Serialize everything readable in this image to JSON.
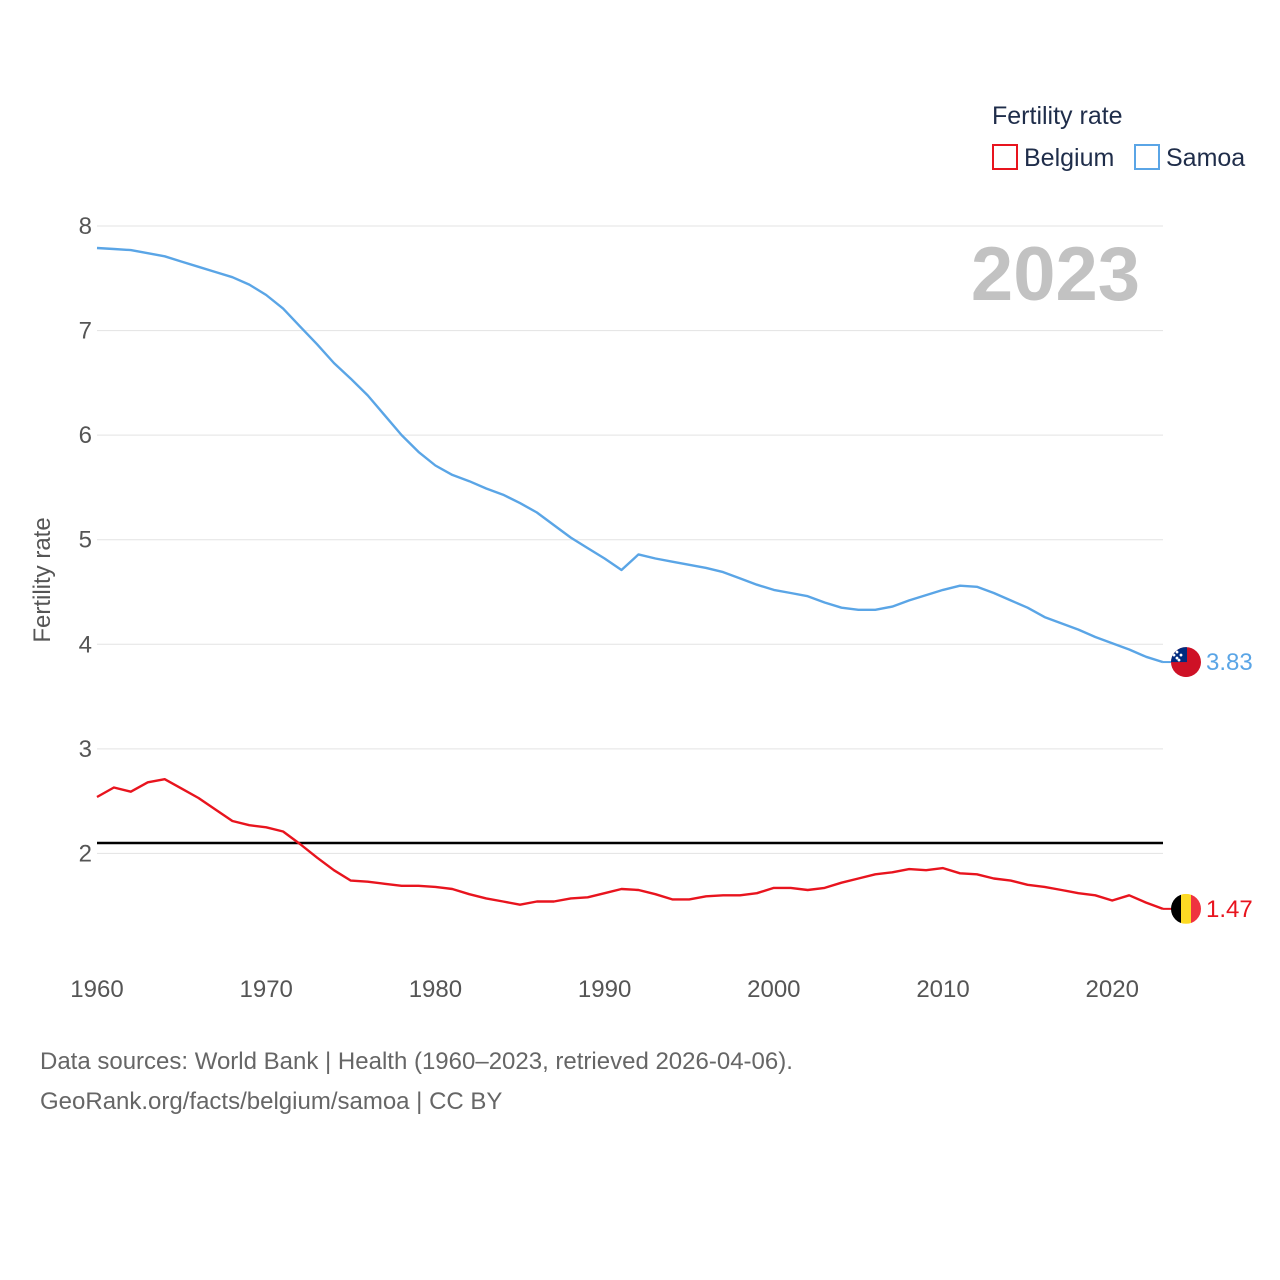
{
  "legend": {
    "title": "Fertility rate",
    "items": [
      {
        "label": "Belgium",
        "color": "#e8141e"
      },
      {
        "label": "Samoa",
        "color": "#5aa5e6"
      }
    ]
  },
  "year_label": "2023",
  "source": {
    "line1": "Data sources: World Bank | Health (1960–2023, retrieved 2026-04-06).",
    "line2": "GeoRank.org/facts/belgium/samoa | CC BY"
  },
  "chart_data": {
    "type": "line",
    "title": "",
    "xlabel": "",
    "ylabel": "Fertility rate",
    "xlim": [
      1960,
      2023
    ],
    "ylim": [
      1,
      8
    ],
    "x_ticks": [
      1960,
      1970,
      1980,
      1990,
      2000,
      2010,
      2020
    ],
    "y_ticks": [
      2,
      3,
      4,
      5,
      6,
      7,
      8
    ],
    "grid": true,
    "reference_line": {
      "y": 2.1,
      "color": "#000000"
    },
    "x": [
      1960,
      1961,
      1962,
      1963,
      1964,
      1965,
      1966,
      1967,
      1968,
      1969,
      1970,
      1971,
      1972,
      1973,
      1974,
      1975,
      1976,
      1977,
      1978,
      1979,
      1980,
      1981,
      1982,
      1983,
      1984,
      1985,
      1986,
      1987,
      1988,
      1989,
      1990,
      1991,
      1992,
      1993,
      1994,
      1995,
      1996,
      1997,
      1998,
      1999,
      2000,
      2001,
      2002,
      2003,
      2004,
      2005,
      2006,
      2007,
      2008,
      2009,
      2010,
      2011,
      2012,
      2013,
      2014,
      2015,
      2016,
      2017,
      2018,
      2019,
      2020,
      2021,
      2022,
      2023
    ],
    "series": [
      {
        "name": "Belgium",
        "color": "#e8141e",
        "end_label": "1.47",
        "values": [
          2.54,
          2.63,
          2.59,
          2.68,
          2.71,
          2.62,
          2.53,
          2.42,
          2.31,
          2.27,
          2.25,
          2.21,
          2.09,
          1.96,
          1.84,
          1.74,
          1.73,
          1.71,
          1.69,
          1.69,
          1.68,
          1.66,
          1.61,
          1.57,
          1.54,
          1.51,
          1.54,
          1.54,
          1.57,
          1.58,
          1.62,
          1.66,
          1.65,
          1.61,
          1.56,
          1.56,
          1.59,
          1.6,
          1.6,
          1.62,
          1.67,
          1.67,
          1.65,
          1.67,
          1.72,
          1.76,
          1.8,
          1.82,
          1.85,
          1.84,
          1.86,
          1.81,
          1.8,
          1.76,
          1.74,
          1.7,
          1.68,
          1.65,
          1.62,
          1.6,
          1.55,
          1.6,
          1.53,
          1.47
        ]
      },
      {
        "name": "Samoa",
        "color": "#5aa5e6",
        "end_label": "3.83",
        "values": [
          7.79,
          7.78,
          7.77,
          7.74,
          7.71,
          7.66,
          7.61,
          7.56,
          7.51,
          7.44,
          7.34,
          7.21,
          7.04,
          6.87,
          6.69,
          6.54,
          6.38,
          6.19,
          6.0,
          5.84,
          5.71,
          5.62,
          5.56,
          5.49,
          5.43,
          5.35,
          5.26,
          5.14,
          5.02,
          4.92,
          4.82,
          4.71,
          4.86,
          4.82,
          4.79,
          4.76,
          4.73,
          4.69,
          4.63,
          4.57,
          4.52,
          4.49,
          4.46,
          4.4,
          4.35,
          4.33,
          4.33,
          4.36,
          4.42,
          4.47,
          4.52,
          4.56,
          4.55,
          4.49,
          4.42,
          4.35,
          4.26,
          4.2,
          4.14,
          4.07,
          4.01,
          3.95,
          3.88,
          3.83
        ]
      }
    ]
  }
}
